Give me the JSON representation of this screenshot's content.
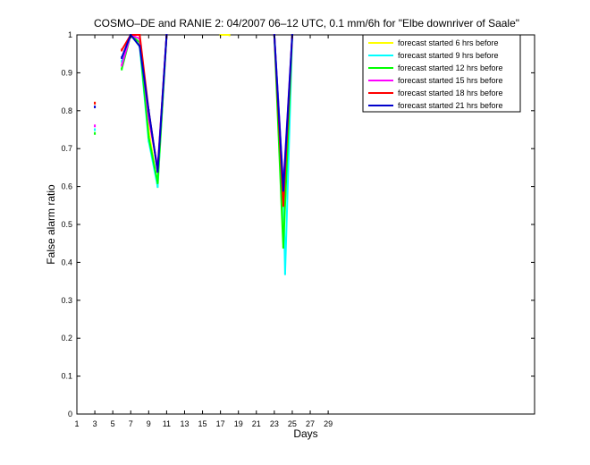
{
  "chart_data": {
    "type": "line",
    "title": "COSMO–DE and RANIE 2: 04/2007 06–12 UTC, 0.1 mm/6h for \"Elbe downriver of Saale\"",
    "xlabel": "Days",
    "ylabel": "False alarm ratio",
    "xlim": [
      1,
      52
    ],
    "ylim": [
      0,
      1
    ],
    "xticks": [
      1,
      3,
      5,
      7,
      9,
      11,
      13,
      15,
      17,
      19,
      21,
      23,
      25,
      27,
      29
    ],
    "yticks": [
      0,
      0.1,
      0.2,
      0.3,
      0.4,
      0.5,
      0.6,
      0.7,
      0.8,
      0.9,
      1
    ],
    "ytick_labels": [
      "0",
      "0.1",
      "0.2",
      "0.3",
      "0.4",
      "0.5",
      "0.6",
      "0.7",
      "0.8",
      "0.9",
      "1"
    ],
    "grid": false,
    "legend_position": "top-right",
    "series": [
      {
        "name": "forecast started 6 hrs before",
        "color": "#ffff00",
        "x": [
          3,
          6,
          7,
          8,
          9,
          10,
          11,
          17,
          18,
          23,
          24,
          25
        ],
        "y": [
          0.82,
          0.93,
          1.0,
          0.97,
          0.75,
          0.6,
          1.0,
          1.0,
          1.0,
          1.0,
          0.5,
          1.0
        ]
      },
      {
        "name": "forecast started 9 hrs before",
        "color": "#00ffff",
        "x": [
          3,
          6,
          7,
          8,
          9,
          10,
          11,
          23,
          24,
          24.2,
          25
        ],
        "y": [
          0.75,
          0.93,
          1.0,
          0.97,
          0.72,
          0.6,
          1.0,
          1.0,
          0.6,
          0.37,
          1.0
        ]
      },
      {
        "name": "forecast started 12 hrs before",
        "color": "#00ff00",
        "x": [
          3,
          6,
          7,
          8,
          9,
          10,
          11,
          23,
          24,
          25
        ],
        "y": [
          0.74,
          0.91,
          1.0,
          0.98,
          0.73,
          0.61,
          1.0,
          1.0,
          0.44,
          1.0
        ]
      },
      {
        "name": "forecast started 15 hrs before",
        "color": "#ff00ff",
        "x": [
          3,
          6,
          7,
          8,
          9,
          10,
          11,
          23,
          24,
          25
        ],
        "y": [
          0.76,
          0.92,
          1.0,
          0.99,
          0.78,
          0.65,
          1.0,
          1.0,
          0.6,
          1.0
        ]
      },
      {
        "name": "forecast started 18 hrs before",
        "color": "#ff0000",
        "x": [
          3,
          6,
          7,
          8,
          9,
          10,
          11,
          23,
          24,
          25
        ],
        "y": [
          0.82,
          0.96,
          1.0,
          1.0,
          0.8,
          0.64,
          1.0,
          1.0,
          0.55,
          1.0
        ]
      },
      {
        "name": "forecast started 21 hrs before",
        "color": "#0000cc",
        "x": [
          3,
          6,
          7,
          8,
          9,
          10,
          11,
          23,
          24,
          25
        ],
        "y": [
          0.81,
          0.94,
          1.0,
          0.97,
          0.8,
          0.64,
          1.0,
          1.0,
          0.59,
          1.0
        ]
      }
    ]
  }
}
